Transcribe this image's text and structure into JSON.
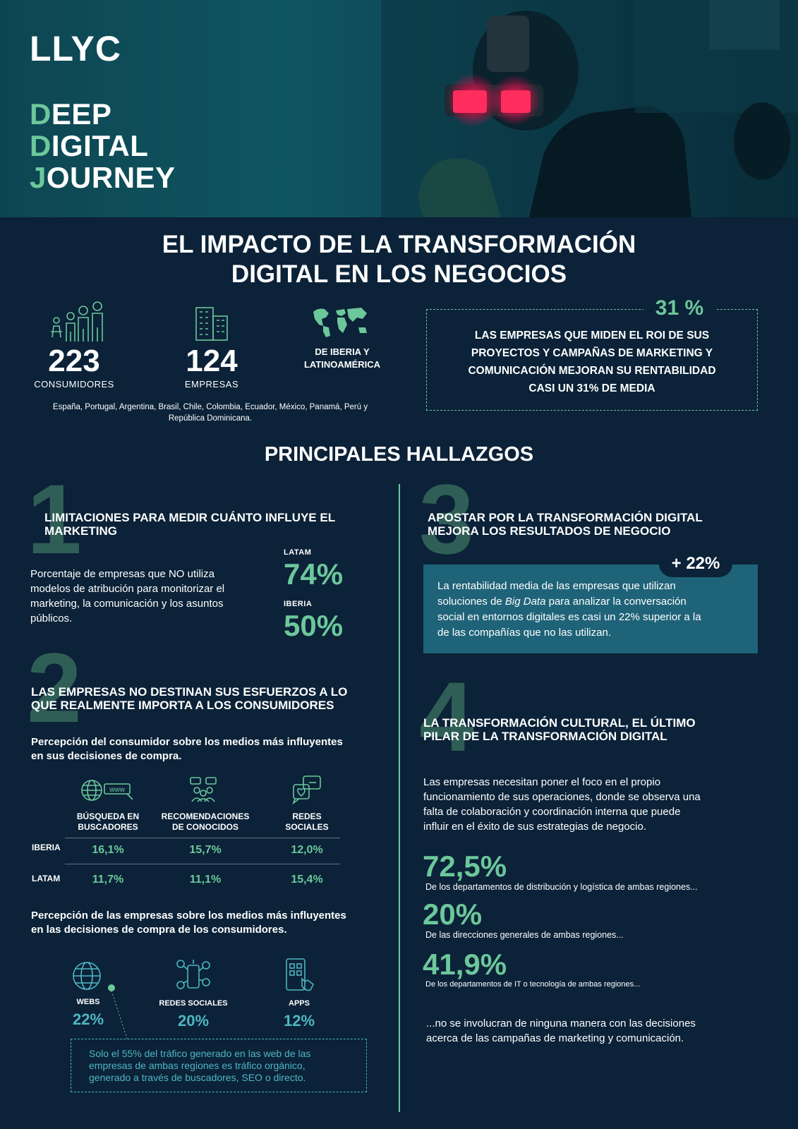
{
  "brand": {
    "logo": "LLYC"
  },
  "hero": {
    "line1": {
      "first": "D",
      "rest": "EEP"
    },
    "line2": {
      "first": "D",
      "rest": "IGITAL"
    },
    "line3": {
      "first": "J",
      "rest": "OURNEY"
    }
  },
  "main_title": {
    "line1": "EL IMPACTO DE LA TRANSFORMACIÓN",
    "line2": "DIGITAL EN LOS NEGOCIOS"
  },
  "stats": {
    "consumers": {
      "value": "223",
      "label": "CONSUMIDORES",
      "icon": "people-icon"
    },
    "companies": {
      "value": "124",
      "label": "EMPRESAS",
      "icon": "building-icon"
    },
    "region": {
      "line1": "DE IBERIA  Y",
      "line2": "LATINOAMÉRICA",
      "icon": "world-map-icon"
    },
    "countries": {
      "line1": "España, Portugal, Argentina, Brasil, Chile, Colombia, Ecuador, México, Panamá, Perú y",
      "line2": "República Dominicana."
    }
  },
  "roi_box": {
    "value": "31 %",
    "line1": "LAS EMPRESAS QUE MIDEN EL ROI DE SUS",
    "line2": "PROYECTOS Y CAMPAÑAS DE MARKETING Y",
    "line3": "COMUNICACIÓN MEJORAN SU RENTABILIDAD",
    "line4": "CASI UN 31% DE MEDIA"
  },
  "findings_title": "PRINCIPALES HALLAZGOS",
  "finding1": {
    "number": "1",
    "title_line1": "LIMITACIONES PARA MEDIR CUÁNTO INFLUYE EL",
    "title_line2": "MARKETING",
    "body": [
      "Porcentaje de empresas que NO utiliza",
      "modelos de atribución para monitorizar el",
      "marketing, la comunicación y los asuntos",
      "públicos."
    ],
    "latam_label": "LATAM",
    "latam_value": "74%",
    "iberia_label": "IBERIA",
    "iberia_value": "50%"
  },
  "finding2": {
    "number": "2",
    "title_line1": "LAS EMPRESAS NO DESTINAN SUS ESFUERZOS A LO",
    "title_line2": "QUE REALMENTE IMPORTA A LOS CONSUMIDORES",
    "consumer_heading": [
      "Percepción del consumidor sobre los medios más influyentes",
      "en sus decisiones de compra."
    ],
    "columns": [
      {
        "line1": "BÚSQUEDA EN",
        "line2": "BUSCADORES"
      },
      {
        "line1": "RECOMENDACIONES",
        "line2": "DE CONOCIDOS"
      },
      {
        "line1": "REDES",
        "line2": "SOCIALES"
      }
    ],
    "www_text": "www",
    "rows": [
      {
        "label": "IBERIA",
        "values": [
          "16,1%",
          "15,7%",
          "12,0%"
        ]
      },
      {
        "label": "LATAM",
        "values": [
          "11,7%",
          "11,1%",
          "15,4%"
        ]
      }
    ],
    "company_heading": [
      "Percepción de las empresas sobre los medios más influyentes",
      "en las decisiones de compra de los consumidores."
    ],
    "company_items": [
      {
        "label": "WEBS",
        "value": "22%"
      },
      {
        "label": "REDES SOCIALES",
        "value": "20%"
      },
      {
        "label": "APPS",
        "value": "12%"
      }
    ],
    "note": [
      "Solo el 55% del tráfico generado en las web de las",
      "empresas de ambas regiones es tráfico orgánico,",
      "generado a través de buscadores, SEO o directo."
    ]
  },
  "finding3": {
    "number": "3",
    "title_line1": "APOSTAR POR LA TRANSFORMACIÓN DIGITAL",
    "title_line2": "MEJORA LOS RESULTADOS DE NEGOCIO",
    "badge": "+ 22%",
    "body_line1": "La rentabilidad media de las empresas que utilizan",
    "body_line2a": "soluciones de ",
    "body_line2b": "Big Data",
    "body_line2c": " para analizar la conversación",
    "body_line3": "social en entornos digitales es casi un 22% superior a la",
    "body_line4": "de las compañías que no las utilizan."
  },
  "finding4": {
    "number": "4",
    "title_line1": "LA TRANSFORMACIÓN CULTURAL, EL ÚLTIMO",
    "title_line2": "PILAR DE LA TRANSFORMACIÓN DIGITAL",
    "body": [
      "Las empresas necesitan poner el foco en el propio",
      "funcionamiento de sus operaciones, donde se observa una",
      "falta de colaboración y coordinación interna que puede",
      "influir en el éxito de sus estrategias de negocio."
    ],
    "stats": [
      {
        "value": "72,5%",
        "desc": "De los departamentos de distribución y logística de ambas regiones..."
      },
      {
        "value": "20%",
        "desc": "De las direcciones generales de ambas regiones..."
      },
      {
        "value": "41,9%",
        "desc": "De los departamentos de IT o tecnología de ambas regiones..."
      }
    ],
    "closing": [
      "...no se involucran de ninguna manera con las decisiones",
      "acerca de las campañas de marketing y comunicación."
    ]
  },
  "colors": {
    "background": "#0b2238",
    "accent_green": "#6cc79b",
    "accent_teal": "#4fb6c2",
    "box_teal": "#1f6378"
  }
}
